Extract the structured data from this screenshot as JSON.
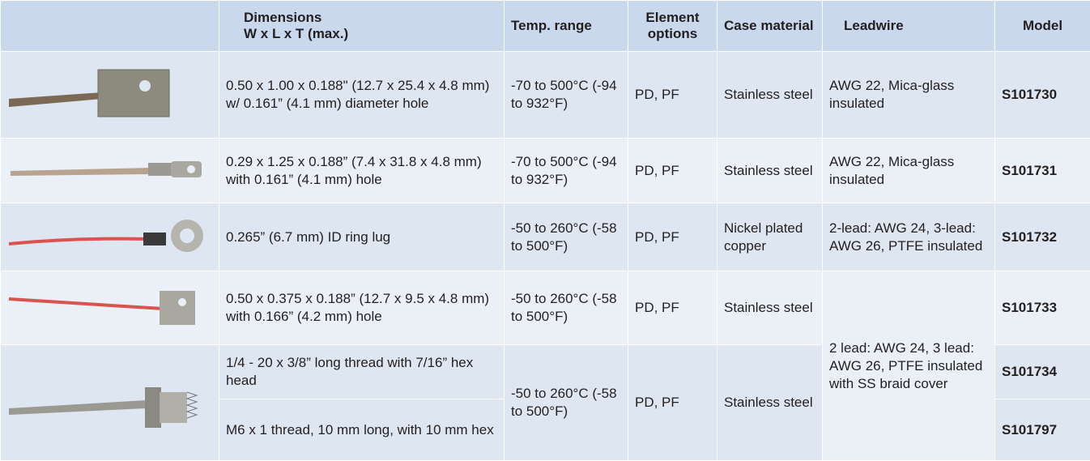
{
  "table": {
    "header": [
      "Dimensions\nW x L x T (max.)",
      "Temp. range",
      "Element options",
      "Case material",
      "Leadwire",
      "Model"
    ],
    "rows": [
      {
        "dimensions": "0.50 x 1.00 x 0.188\" (12.7 x 25.4 x 4.8 mm) w/ 0.161” (4.1 mm) diameter hole",
        "temperature": "-70 to 500°C (-94 to 932°F)",
        "elements": "PD, PF",
        "case": "Stainless steel",
        "leadwire": "AWG 22, Mica-glass insulated",
        "model": "S101730"
      },
      {
        "dimensions": "0.29 x 1.25 x 0.188” (7.4 x 31.8 x 4.8 mm) with 0.161” (4.1 mm) hole",
        "temperature": "-70 to 500°C (-94 to 932°F)",
        "elements": "PD, PF",
        "case": "Stainless steel",
        "leadwire": "AWG 22, Mica-glass insulated",
        "model": "S101731"
      },
      {
        "dimensions": "0.265” (6.7 mm) ID ring lug",
        "temperature": "-50 to 260°C (-58 to 500°F)",
        "elements": "PD, PF",
        "case": "Nickel plated copper",
        "leadwire": "2-lead: AWG 24, 3-lead: AWG 26, PTFE insulated",
        "model": "S101732"
      },
      {
        "dimensions": "0.50 x 0.375 x 0.188” (12.7 x 9.5 x 4.8 mm) with 0.166” (4.2 mm) hole",
        "temperature": "-50 to 260°C (-58 to 500°F)",
        "elements": "PD, PF",
        "case": "Stainless steel",
        "leadwire": "2 lead: AWG 24, 3 lead: AWG 26, PTFE insulated with SS braid cover",
        "model": "S101733"
      },
      {
        "dimensions": "1/4 - 20 x 3/8” long thread with 7/16” hex head",
        "temperature": "-50 to 260°C (-58 to 500°F)",
        "elements": "PD, PF",
        "case": "Stainless steel",
        "model": "S101734"
      },
      {
        "dimensions": "M6 x 1 thread, 10 mm long, with 10 mm hex",
        "model": "S101797"
      }
    ]
  }
}
